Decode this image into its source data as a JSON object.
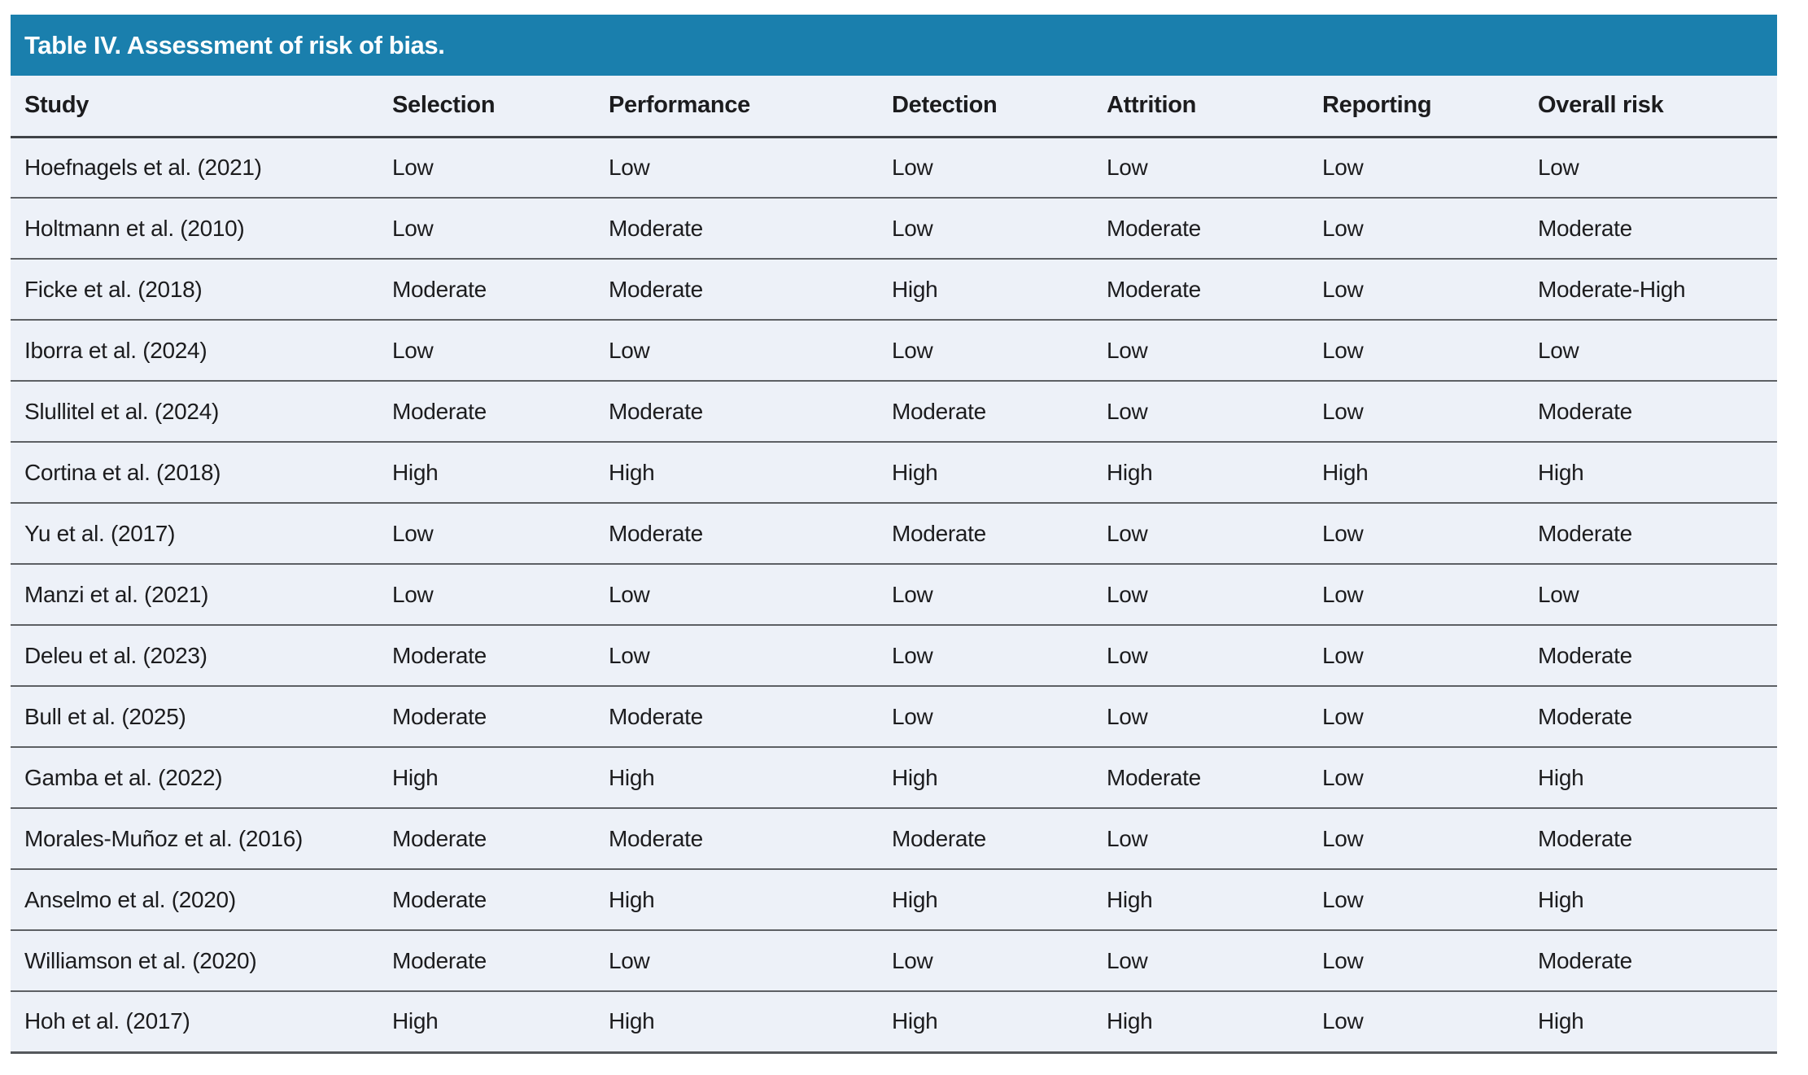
{
  "colors": {
    "title_bar_bg": "#1a7fad",
    "title_text": "#ffffff",
    "row_bg": "#edf1f8",
    "body_text": "#1c1c1e",
    "row_divider": "#5d6064",
    "header_divider": "#404348"
  },
  "table": {
    "title": "Table IV. Assessment of risk of bias.",
    "columns": [
      "Study",
      "Selection",
      "Performance",
      "Detection",
      "Attrition",
      "Reporting",
      "Overall risk"
    ],
    "rows": [
      {
        "cells": [
          "Hoefnagels et al. (2021)",
          "Low",
          "Low",
          "Low",
          "Low",
          "Low",
          "Low"
        ]
      },
      {
        "cells": [
          "Holtmann et al. (2010)",
          "Low",
          "Moderate",
          "Low",
          "Moderate",
          "Low",
          "Moderate"
        ]
      },
      {
        "cells": [
          "Ficke et al. (2018)",
          "Moderate",
          "Moderate",
          "High",
          "Moderate",
          "Low",
          "Moderate-High"
        ]
      },
      {
        "cells": [
          "Iborra et al. (2024)",
          "Low",
          "Low",
          "Low",
          "Low",
          "Low",
          "Low"
        ]
      },
      {
        "cells": [
          "Slullitel et al. (2024)",
          "Moderate",
          "Moderate",
          "Moderate",
          "Low",
          "Low",
          "Moderate"
        ]
      },
      {
        "cells": [
          "Cortina et al. (2018)",
          "High",
          "High",
          "High",
          "High",
          "High",
          "High"
        ]
      },
      {
        "cells": [
          "Yu et al. (2017)",
          "Low",
          "Moderate",
          "Moderate",
          "Low",
          "Low",
          "Moderate"
        ]
      },
      {
        "cells": [
          "Manzi et al. (2021)",
          "Low",
          "Low",
          "Low",
          "Low",
          "Low",
          "Low"
        ]
      },
      {
        "cells": [
          "Deleu et al. (2023)",
          "Moderate",
          "Low",
          "Low",
          "Low",
          "Low",
          "Moderate"
        ]
      },
      {
        "cells": [
          "Bull et al. (2025)",
          "Moderate",
          "Moderate",
          "Low",
          "Low",
          "Low",
          "Moderate"
        ]
      },
      {
        "cells": [
          "Gamba et al. (2022)",
          "High",
          "High",
          "High",
          "Moderate",
          "Low",
          "High"
        ]
      },
      {
        "cells": [
          "Morales-Muñoz et al. (2016)",
          "Moderate",
          "Moderate",
          "Moderate",
          "Low",
          "Low",
          "Moderate"
        ]
      },
      {
        "cells": [
          "Anselmo et al. (2020)",
          "Moderate",
          "High",
          "High",
          "High",
          "Low",
          "High"
        ]
      },
      {
        "cells": [
          "Williamson et al. (2020)",
          "Moderate",
          "Low",
          "Low",
          "Low",
          "Low",
          "Moderate"
        ]
      },
      {
        "cells": [
          "Hoh et al. (2017)",
          "High",
          "High",
          "High",
          "High",
          "Low",
          "High"
        ]
      }
    ]
  }
}
